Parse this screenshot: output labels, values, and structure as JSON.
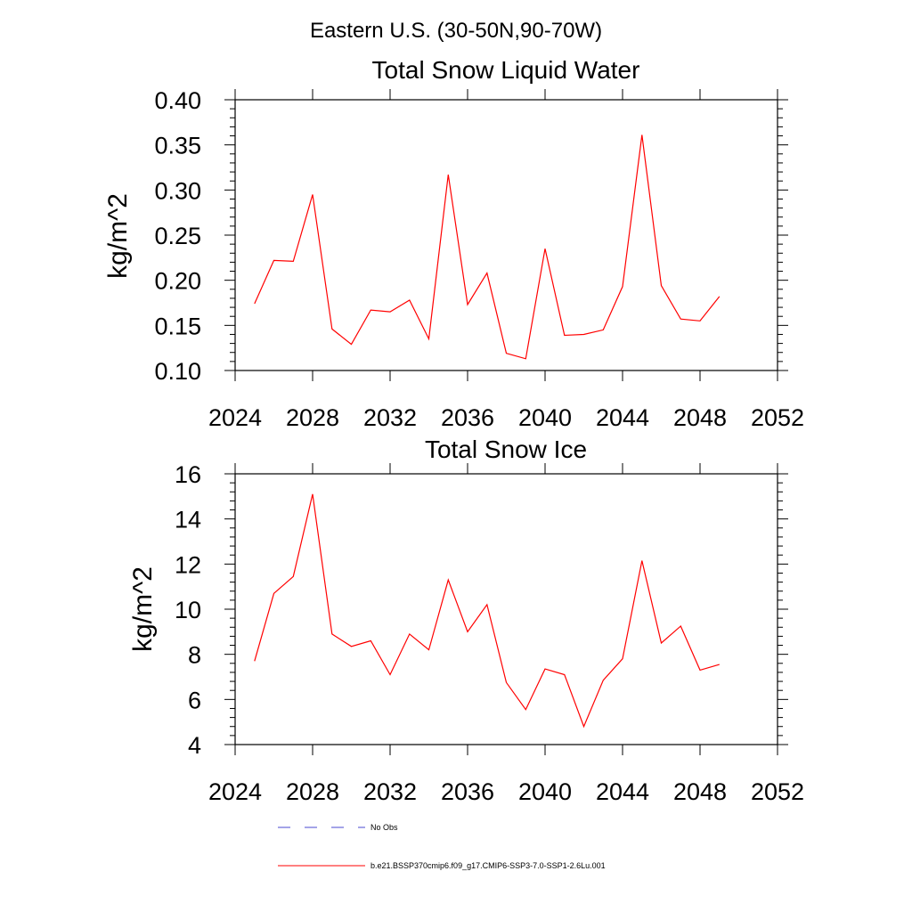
{
  "header": "Eastern U.S. (30-50N,90-70W)",
  "chart_data": [
    {
      "type": "line",
      "title": "Total Snow Liquid Water",
      "xlabel": "",
      "ylabel": "kg/m^2",
      "xlim": [
        2024,
        2052
      ],
      "ylim": [
        0.1,
        0.4
      ],
      "xticks": [
        "2024",
        "2028",
        "2032",
        "2036",
        "2040",
        "2044",
        "2048",
        "2052"
      ],
      "yticks": [
        "0.10",
        "0.15",
        "0.20",
        "0.25",
        "0.30",
        "0.35",
        "0.40"
      ],
      "grid": false,
      "series": [
        {
          "name": "b.e21.BSSP370cmip6.f09_g17.CMIP6-SSP3-7.0-SSP1-2.6Lu.001",
          "color": "#ff0000",
          "x": [
            2025,
            2026,
            2027,
            2028,
            2029,
            2030,
            2031,
            2032,
            2033,
            2034,
            2035,
            2036,
            2037,
            2038,
            2039,
            2040,
            2041,
            2042,
            2043,
            2044,
            2045,
            2046,
            2047,
            2048,
            2049
          ],
          "y": [
            0.174,
            0.222,
            0.221,
            0.295,
            0.146,
            0.129,
            0.167,
            0.165,
            0.178,
            0.135,
            0.317,
            0.173,
            0.208,
            0.119,
            0.113,
            0.235,
            0.139,
            0.14,
            0.145,
            0.193,
            0.361,
            0.194,
            0.157,
            0.155,
            0.182
          ]
        }
      ]
    },
    {
      "type": "line",
      "title": "Total Snow Ice",
      "xlabel": "",
      "ylabel": "kg/m^2",
      "xlim": [
        2024,
        2052
      ],
      "ylim": [
        4,
        16
      ],
      "xticks": [
        "2024",
        "2028",
        "2032",
        "2036",
        "2040",
        "2044",
        "2048",
        "2052"
      ],
      "yticks": [
        "4",
        "6",
        "8",
        "10",
        "12",
        "14",
        "16"
      ],
      "grid": false,
      "series": [
        {
          "name": "b.e21.BSSP370cmip6.f09_g17.CMIP6-SSP3-7.0-SSP1-2.6Lu.001",
          "color": "#ff0000",
          "x": [
            2025,
            2026,
            2027,
            2028,
            2029,
            2030,
            2031,
            2032,
            2033,
            2034,
            2035,
            2036,
            2037,
            2038,
            2039,
            2040,
            2041,
            2042,
            2043,
            2044,
            2045,
            2046,
            2047,
            2048,
            2049
          ],
          "y": [
            7.7,
            10.7,
            11.45,
            15.1,
            8.9,
            8.35,
            8.6,
            7.1,
            8.9,
            8.2,
            11.3,
            9.0,
            10.2,
            6.75,
            5.55,
            7.35,
            7.1,
            4.8,
            6.85,
            7.8,
            12.15,
            8.5,
            9.25,
            7.3,
            7.55
          ]
        }
      ]
    }
  ],
  "legend": [
    {
      "label": "No Obs",
      "color": "#4a4ad0",
      "dash": "dashed"
    },
    {
      "label": "b.e21.BSSP370cmip6.f09_g17.CMIP6-SSP3-7.0-SSP1-2.6Lu.001",
      "color": "#ff0000",
      "dash": "solid"
    }
  ]
}
